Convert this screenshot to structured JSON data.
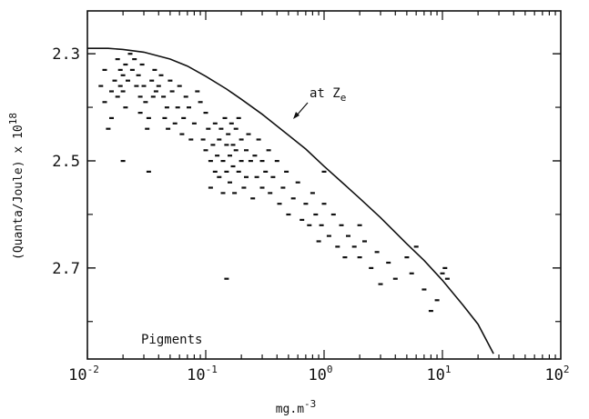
{
  "chart_data": {
    "type": "scatter",
    "title": "",
    "xlabel": {
      "base": "mg.m",
      "sup": "-3"
    },
    "ylabel": {
      "base": "(Quanta/Joule) x 10",
      "sup": "18"
    },
    "xscale": "log",
    "xlim": [
      0.01,
      100
    ],
    "ylim": [
      2.22,
      2.87
    ],
    "y_inverted": true,
    "grid": false,
    "x_ticks": [
      {
        "base": "10",
        "exp": "-2"
      },
      {
        "base": "10",
        "exp": "-1"
      },
      {
        "base": "10",
        "exp": "0"
      },
      {
        "base": "10",
        "exp": "1"
      },
      {
        "base": "10",
        "exp": "2"
      }
    ],
    "x_tick_values": [
      0.01,
      0.1,
      1,
      10,
      100
    ],
    "y_ticks": [
      "2.3",
      "2.5",
      "2.7"
    ],
    "y_tick_values": [
      2.3,
      2.5,
      2.7
    ],
    "y_minor_ticks": [
      2.4,
      2.6,
      2.8
    ],
    "annotations": [
      {
        "text": "Pigments"
      },
      {
        "text": "at Z",
        "sub": "e"
      }
    ],
    "curve": {
      "x": [
        0.01,
        0.015,
        0.02,
        0.03,
        0.05,
        0.07,
        0.1,
        0.15,
        0.2,
        0.3,
        0.5,
        0.7,
        1.0,
        1.5,
        2,
        3,
        5,
        7,
        10,
        15,
        20,
        27
      ],
      "y": [
        2.29,
        2.29,
        2.292,
        2.297,
        2.31,
        2.323,
        2.342,
        2.366,
        2.385,
        2.413,
        2.452,
        2.478,
        2.51,
        2.545,
        2.57,
        2.606,
        2.655,
        2.686,
        2.723,
        2.77,
        2.805,
        2.86
      ]
    },
    "points": [
      [
        0.013,
        2.36
      ],
      [
        0.014,
        2.33
      ],
      [
        0.014,
        2.39
      ],
      [
        0.015,
        2.44
      ],
      [
        0.016,
        2.37
      ],
      [
        0.016,
        2.42
      ],
      [
        0.017,
        2.35
      ],
      [
        0.018,
        2.31
      ],
      [
        0.018,
        2.38
      ],
      [
        0.019,
        2.33
      ],
      [
        0.019,
        2.36
      ],
      [
        0.02,
        2.34
      ],
      [
        0.02,
        2.37
      ],
      [
        0.02,
        2.5
      ],
      [
        0.021,
        2.32
      ],
      [
        0.021,
        2.4
      ],
      [
        0.022,
        2.35
      ],
      [
        0.023,
        2.3
      ],
      [
        0.024,
        2.33
      ],
      [
        0.025,
        2.31
      ],
      [
        0.026,
        2.36
      ],
      [
        0.027,
        2.34
      ],
      [
        0.028,
        2.38
      ],
      [
        0.028,
        2.41
      ],
      [
        0.029,
        2.32
      ],
      [
        0.03,
        2.36
      ],
      [
        0.031,
        2.39
      ],
      [
        0.032,
        2.44
      ],
      [
        0.033,
        2.42
      ],
      [
        0.033,
        2.52
      ],
      [
        0.035,
        2.35
      ],
      [
        0.036,
        2.38
      ],
      [
        0.037,
        2.33
      ],
      [
        0.038,
        2.37
      ],
      [
        0.04,
        2.36
      ],
      [
        0.042,
        2.34
      ],
      [
        0.044,
        2.38
      ],
      [
        0.045,
        2.42
      ],
      [
        0.047,
        2.4
      ],
      [
        0.048,
        2.44
      ],
      [
        0.05,
        2.35
      ],
      [
        0.052,
        2.37
      ],
      [
        0.055,
        2.43
      ],
      [
        0.058,
        2.4
      ],
      [
        0.06,
        2.36
      ],
      [
        0.063,
        2.45
      ],
      [
        0.065,
        2.42
      ],
      [
        0.068,
        2.38
      ],
      [
        0.072,
        2.4
      ],
      [
        0.075,
        2.46
      ],
      [
        0.08,
        2.43
      ],
      [
        0.085,
        2.37
      ],
      [
        0.09,
        2.39
      ],
      [
        0.095,
        2.46
      ],
      [
        0.1,
        2.41
      ],
      [
        0.1,
        2.48
      ],
      [
        0.105,
        2.44
      ],
      [
        0.11,
        2.5
      ],
      [
        0.11,
        2.55
      ],
      [
        0.115,
        2.47
      ],
      [
        0.12,
        2.43
      ],
      [
        0.12,
        2.52
      ],
      [
        0.125,
        2.49
      ],
      [
        0.13,
        2.46
      ],
      [
        0.13,
        2.53
      ],
      [
        0.135,
        2.44
      ],
      [
        0.14,
        2.5
      ],
      [
        0.14,
        2.56
      ],
      [
        0.145,
        2.42
      ],
      [
        0.15,
        2.47
      ],
      [
        0.15,
        2.52
      ],
      [
        0.155,
        2.45
      ],
      [
        0.16,
        2.49
      ],
      [
        0.16,
        2.54
      ],
      [
        0.165,
        2.43
      ],
      [
        0.17,
        2.47
      ],
      [
        0.17,
        2.51
      ],
      [
        0.175,
        2.56
      ],
      [
        0.18,
        2.44
      ],
      [
        0.18,
        2.48
      ],
      [
        0.19,
        2.42
      ],
      [
        0.19,
        2.52
      ],
      [
        0.2,
        2.46
      ],
      [
        0.2,
        2.5
      ],
      [
        0.21,
        2.55
      ],
      [
        0.22,
        2.48
      ],
      [
        0.22,
        2.53
      ],
      [
        0.23,
        2.45
      ],
      [
        0.24,
        2.5
      ],
      [
        0.25,
        2.57
      ],
      [
        0.26,
        2.49
      ],
      [
        0.27,
        2.53
      ],
      [
        0.28,
        2.46
      ],
      [
        0.3,
        2.5
      ],
      [
        0.3,
        2.55
      ],
      [
        0.32,
        2.52
      ],
      [
        0.34,
        2.48
      ],
      [
        0.35,
        2.56
      ],
      [
        0.37,
        2.53
      ],
      [
        0.4,
        2.5
      ],
      [
        0.42,
        2.58
      ],
      [
        0.45,
        2.55
      ],
      [
        0.48,
        2.52
      ],
      [
        0.5,
        2.6
      ],
      [
        0.55,
        2.57
      ],
      [
        0.6,
        2.54
      ],
      [
        0.65,
        2.61
      ],
      [
        0.7,
        2.58
      ],
      [
        0.75,
        2.62
      ],
      [
        0.8,
        2.56
      ],
      [
        0.85,
        2.6
      ],
      [
        0.9,
        2.65
      ],
      [
        0.95,
        2.62
      ],
      [
        1.0,
        2.52
      ],
      [
        1.0,
        2.58
      ],
      [
        1.1,
        2.64
      ],
      [
        1.2,
        2.6
      ],
      [
        1.3,
        2.66
      ],
      [
        1.4,
        2.62
      ],
      [
        1.5,
        2.68
      ],
      [
        1.6,
        2.64
      ],
      [
        1.8,
        2.66
      ],
      [
        2.0,
        2.62
      ],
      [
        2.0,
        2.68
      ],
      [
        2.2,
        2.65
      ],
      [
        2.5,
        2.7
      ],
      [
        2.8,
        2.67
      ],
      [
        3.0,
        2.73
      ],
      [
        3.5,
        2.69
      ],
      [
        4.0,
        2.72
      ],
      [
        5.0,
        2.68
      ],
      [
        5.5,
        2.71
      ],
      [
        6.0,
        2.66
      ],
      [
        7.0,
        2.74
      ],
      [
        8.0,
        2.78
      ],
      [
        9.0,
        2.76
      ],
      [
        10.0,
        2.71
      ],
      [
        10.5,
        2.7
      ],
      [
        11.0,
        2.72
      ],
      [
        0.15,
        2.72
      ]
    ]
  }
}
